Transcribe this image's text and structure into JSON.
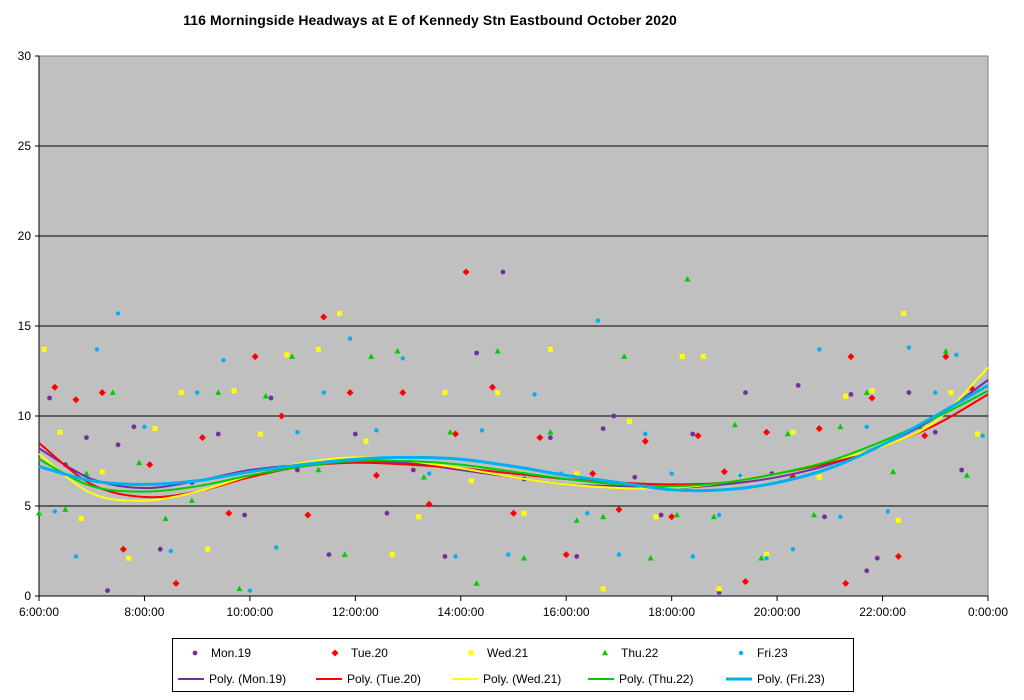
{
  "chart_data": {
    "type": "scatter",
    "title": "116 Morningside Headways at E of Kennedy Stn Eastbound October 2020",
    "xlabel": "",
    "ylabel": "",
    "xlim": [
      "6:00:00",
      "0:00:00"
    ],
    "ylim": [
      0,
      30
    ],
    "xticks": [
      "6:00:00",
      "8:00:00",
      "10:00:00",
      "12:00:00",
      "14:00:00",
      "16:00:00",
      "18:00:00",
      "20:00:00",
      "22:00:00",
      "0:00:00"
    ],
    "yticks": [
      0,
      5,
      10,
      15,
      20,
      25,
      30
    ],
    "grid": "horizontal",
    "plot_background": "#c0c0c0",
    "legend_position": "bottom",
    "series": [
      {
        "name": "Mon.19",
        "marker": "circle",
        "color": "#7030a0",
        "trend_name": "Poly. (Mon.19)",
        "trend": [
          [
            6.0,
            8.2
          ],
          [
            7.0,
            6.5
          ],
          [
            8.0,
            6.0
          ],
          [
            9.0,
            6.4
          ],
          [
            10.0,
            7.0
          ],
          [
            11.0,
            7.3
          ],
          [
            12.0,
            7.5
          ],
          [
            13.0,
            7.4
          ],
          [
            14.0,
            7.0
          ],
          [
            15.0,
            6.6
          ],
          [
            16.0,
            6.2
          ],
          [
            17.0,
            6.1
          ],
          [
            18.0,
            6.0
          ],
          [
            19.0,
            6.2
          ],
          [
            20.0,
            6.6
          ],
          [
            21.0,
            7.3
          ],
          [
            22.0,
            8.4
          ],
          [
            23.0,
            9.9
          ],
          [
            24.0,
            12.0
          ]
        ],
        "points": [
          [
            6.2,
            11.0
          ],
          [
            6.5,
            7.3
          ],
          [
            6.9,
            8.8
          ],
          [
            7.3,
            0.3
          ],
          [
            7.8,
            9.4
          ],
          [
            8.3,
            2.6
          ],
          [
            8.9,
            6.3
          ],
          [
            9.4,
            9.0
          ],
          [
            9.9,
            4.5
          ],
          [
            10.4,
            11.0
          ],
          [
            10.9,
            7.0
          ],
          [
            11.5,
            2.3
          ],
          [
            12.0,
            9.0
          ],
          [
            12.6,
            4.6
          ],
          [
            13.1,
            7.0
          ],
          [
            13.7,
            2.2
          ],
          [
            14.3,
            13.5
          ],
          [
            14.8,
            18.0
          ],
          [
            15.2,
            6.5
          ],
          [
            15.7,
            8.8
          ],
          [
            16.2,
            2.2
          ],
          [
            16.7,
            9.3
          ],
          [
            17.3,
            6.6
          ],
          [
            17.8,
            4.5
          ],
          [
            18.4,
            9.0
          ],
          [
            18.9,
            0.2
          ],
          [
            19.4,
            11.3
          ],
          [
            19.9,
            6.8
          ],
          [
            20.4,
            11.7
          ],
          [
            20.9,
            4.4
          ],
          [
            21.4,
            11.2
          ],
          [
            21.9,
            2.1
          ],
          [
            22.5,
            11.3
          ],
          [
            23.0,
            9.1
          ],
          [
            23.5,
            7.0
          ],
          [
            7.5,
            8.4
          ],
          [
            16.9,
            10.0
          ],
          [
            21.7,
            1.4
          ]
        ]
      },
      {
        "name": "Tue.20",
        "marker": "diamond",
        "color": "#ff0000",
        "trend_name": "Poly. (Tue.20)",
        "trend": [
          [
            6.0,
            8.5
          ],
          [
            7.0,
            6.2
          ],
          [
            8.0,
            5.5
          ],
          [
            9.0,
            5.8
          ],
          [
            10.0,
            6.6
          ],
          [
            11.0,
            7.2
          ],
          [
            12.0,
            7.4
          ],
          [
            13.0,
            7.3
          ],
          [
            14.0,
            7.1
          ],
          [
            15.0,
            6.8
          ],
          [
            16.0,
            6.5
          ],
          [
            17.0,
            6.3
          ],
          [
            18.0,
            6.2
          ],
          [
            19.0,
            6.3
          ],
          [
            20.0,
            6.8
          ],
          [
            21.0,
            7.4
          ],
          [
            22.0,
            8.3
          ],
          [
            23.0,
            9.5
          ],
          [
            24.0,
            11.2
          ]
        ],
        "points": [
          [
            6.3,
            11.6
          ],
          [
            6.7,
            10.9
          ],
          [
            7.2,
            11.3
          ],
          [
            7.6,
            2.6
          ],
          [
            8.1,
            7.3
          ],
          [
            8.6,
            0.7
          ],
          [
            9.1,
            8.8
          ],
          [
            9.6,
            4.6
          ],
          [
            10.1,
            13.3
          ],
          [
            10.6,
            10.0
          ],
          [
            11.1,
            4.5
          ],
          [
            11.4,
            15.5
          ],
          [
            11.9,
            11.3
          ],
          [
            12.4,
            6.7
          ],
          [
            12.9,
            11.3
          ],
          [
            13.4,
            5.1
          ],
          [
            13.9,
            9.0
          ],
          [
            14.1,
            18.0
          ],
          [
            14.6,
            11.6
          ],
          [
            15.0,
            4.6
          ],
          [
            15.5,
            8.8
          ],
          [
            16.0,
            2.3
          ],
          [
            16.5,
            6.8
          ],
          [
            17.0,
            4.8
          ],
          [
            17.5,
            8.6
          ],
          [
            18.0,
            4.4
          ],
          [
            18.5,
            8.9
          ],
          [
            19.0,
            6.9
          ],
          [
            19.4,
            0.8
          ],
          [
            19.8,
            9.1
          ],
          [
            20.3,
            6.6
          ],
          [
            20.8,
            9.3
          ],
          [
            21.3,
            0.7
          ],
          [
            21.4,
            13.3
          ],
          [
            21.8,
            11.0
          ],
          [
            22.3,
            2.2
          ],
          [
            22.8,
            8.9
          ],
          [
            23.2,
            13.3
          ],
          [
            23.7,
            11.5
          ]
        ]
      },
      {
        "name": "Wed.21",
        "marker": "square",
        "color": "#ffff00",
        "trend_name": "Poly. (Wed.21)",
        "trend": [
          [
            6.0,
            7.9
          ],
          [
            7.0,
            5.7
          ],
          [
            8.0,
            5.3
          ],
          [
            9.0,
            5.8
          ],
          [
            10.0,
            6.7
          ],
          [
            11.0,
            7.4
          ],
          [
            12.0,
            7.7
          ],
          [
            13.0,
            7.5
          ],
          [
            14.0,
            7.1
          ],
          [
            15.0,
            6.6
          ],
          [
            16.0,
            6.2
          ],
          [
            17.0,
            6.0
          ],
          [
            18.0,
            6.0
          ],
          [
            19.0,
            6.3
          ],
          [
            20.0,
            6.8
          ],
          [
            21.0,
            7.5
          ],
          [
            22.0,
            8.3
          ],
          [
            23.0,
            9.7
          ],
          [
            24.0,
            12.7
          ]
        ],
        "points": [
          [
            6.1,
            13.7
          ],
          [
            6.4,
            9.1
          ],
          [
            6.8,
            4.3
          ],
          [
            7.2,
            6.9
          ],
          [
            7.7,
            2.1
          ],
          [
            8.2,
            9.3
          ],
          [
            8.7,
            11.3
          ],
          [
            9.2,
            2.6
          ],
          [
            9.7,
            11.4
          ],
          [
            10.2,
            9.0
          ],
          [
            10.7,
            13.4
          ],
          [
            11.3,
            13.7
          ],
          [
            11.7,
            15.7
          ],
          [
            12.2,
            8.6
          ],
          [
            12.7,
            2.3
          ],
          [
            13.2,
            4.4
          ],
          [
            13.7,
            11.3
          ],
          [
            14.2,
            6.4
          ],
          [
            14.7,
            11.3
          ],
          [
            15.2,
            4.6
          ],
          [
            15.7,
            13.7
          ],
          [
            16.2,
            6.8
          ],
          [
            16.7,
            0.4
          ],
          [
            17.2,
            9.7
          ],
          [
            17.7,
            4.4
          ],
          [
            18.2,
            13.3
          ],
          [
            18.6,
            13.3
          ],
          [
            18.9,
            0.4
          ],
          [
            19.3,
            6.7
          ],
          [
            19.8,
            2.3
          ],
          [
            20.3,
            9.1
          ],
          [
            20.8,
            6.6
          ],
          [
            21.3,
            11.1
          ],
          [
            21.8,
            11.4
          ],
          [
            22.3,
            4.2
          ],
          [
            22.4,
            15.7
          ],
          [
            22.8,
            9.6
          ],
          [
            23.3,
            11.3
          ],
          [
            23.8,
            9.0
          ]
        ]
      },
      {
        "name": "Thu.22",
        "marker": "triangle",
        "color": "#00cc00",
        "trend_name": "Poly. (Thu.22)",
        "trend": [
          [
            6.0,
            7.6
          ],
          [
            7.0,
            6.1
          ],
          [
            8.0,
            5.8
          ],
          [
            9.0,
            6.1
          ],
          [
            10.0,
            6.7
          ],
          [
            11.0,
            7.2
          ],
          [
            12.0,
            7.5
          ],
          [
            13.0,
            7.5
          ],
          [
            14.0,
            7.3
          ],
          [
            15.0,
            6.9
          ],
          [
            16.0,
            6.5
          ],
          [
            17.0,
            6.2
          ],
          [
            18.0,
            6.1
          ],
          [
            19.0,
            6.3
          ],
          [
            20.0,
            6.8
          ],
          [
            21.0,
            7.5
          ],
          [
            22.0,
            8.6
          ],
          [
            23.0,
            9.9
          ],
          [
            24.0,
            11.4
          ]
        ],
        "points": [
          [
            6.0,
            4.6
          ],
          [
            6.5,
            4.8
          ],
          [
            6.9,
            6.8
          ],
          [
            7.4,
            11.3
          ],
          [
            7.9,
            7.4
          ],
          [
            8.4,
            4.3
          ],
          [
            8.9,
            5.3
          ],
          [
            9.4,
            11.3
          ],
          [
            9.8,
            0.4
          ],
          [
            10.3,
            11.1
          ],
          [
            10.8,
            13.3
          ],
          [
            11.3,
            7.0
          ],
          [
            11.8,
            2.3
          ],
          [
            12.3,
            13.3
          ],
          [
            12.8,
            13.6
          ],
          [
            13.3,
            6.6
          ],
          [
            13.8,
            9.1
          ],
          [
            14.3,
            0.7
          ],
          [
            14.7,
            13.6
          ],
          [
            15.2,
            2.1
          ],
          [
            15.7,
            9.1
          ],
          [
            16.2,
            4.2
          ],
          [
            16.7,
            4.4
          ],
          [
            17.1,
            13.3
          ],
          [
            17.6,
            2.1
          ],
          [
            18.1,
            4.5
          ],
          [
            18.3,
            17.6
          ],
          [
            18.8,
            4.4
          ],
          [
            19.2,
            9.5
          ],
          [
            19.7,
            2.1
          ],
          [
            20.2,
            9.0
          ],
          [
            20.7,
            4.5
          ],
          [
            21.2,
            9.4
          ],
          [
            21.7,
            11.3
          ],
          [
            22.2,
            6.9
          ],
          [
            22.7,
            9.4
          ],
          [
            23.2,
            13.6
          ],
          [
            23.6,
            6.7
          ]
        ]
      },
      {
        "name": "Fri.23",
        "marker": "dot",
        "color": "#00b0f0",
        "trend_name": "Poly. (Fri.23)",
        "trend": [
          [
            6.0,
            7.2
          ],
          [
            7.0,
            6.4
          ],
          [
            8.0,
            6.2
          ],
          [
            9.0,
            6.4
          ],
          [
            10.0,
            6.9
          ],
          [
            11.0,
            7.3
          ],
          [
            12.0,
            7.6
          ],
          [
            13.0,
            7.7
          ],
          [
            14.0,
            7.6
          ],
          [
            15.0,
            7.2
          ],
          [
            16.0,
            6.7
          ],
          [
            17.0,
            6.3
          ],
          [
            18.0,
            5.9
          ],
          [
            19.0,
            5.9
          ],
          [
            20.0,
            6.3
          ],
          [
            21.0,
            7.1
          ],
          [
            22.0,
            8.4
          ],
          [
            23.0,
            10.0
          ],
          [
            24.0,
            11.7
          ]
        ],
        "points": [
          [
            6.3,
            4.7
          ],
          [
            6.7,
            2.2
          ],
          [
            7.1,
            13.7
          ],
          [
            7.5,
            15.7
          ],
          [
            8.0,
            9.4
          ],
          [
            8.5,
            2.5
          ],
          [
            9.0,
            11.3
          ],
          [
            9.5,
            13.1
          ],
          [
            10.0,
            0.3
          ],
          [
            10.5,
            2.7
          ],
          [
            10.9,
            9.1
          ],
          [
            11.4,
            11.3
          ],
          [
            11.9,
            14.3
          ],
          [
            12.4,
            9.2
          ],
          [
            12.9,
            13.2
          ],
          [
            13.4,
            6.8
          ],
          [
            13.9,
            2.2
          ],
          [
            14.4,
            9.2
          ],
          [
            14.9,
            2.3
          ],
          [
            15.4,
            11.2
          ],
          [
            15.9,
            6.8
          ],
          [
            16.4,
            4.6
          ],
          [
            16.6,
            15.3
          ],
          [
            17.0,
            2.3
          ],
          [
            17.5,
            9.0
          ],
          [
            18.0,
            6.8
          ],
          [
            18.4,
            2.2
          ],
          [
            18.9,
            4.5
          ],
          [
            19.3,
            6.7
          ],
          [
            19.8,
            2.1
          ],
          [
            20.3,
            2.6
          ],
          [
            20.8,
            13.7
          ],
          [
            21.2,
            4.4
          ],
          [
            21.7,
            9.4
          ],
          [
            22.1,
            4.7
          ],
          [
            22.5,
            13.8
          ],
          [
            23.0,
            11.3
          ],
          [
            23.4,
            13.4
          ],
          [
            23.9,
            8.9
          ]
        ]
      }
    ]
  }
}
